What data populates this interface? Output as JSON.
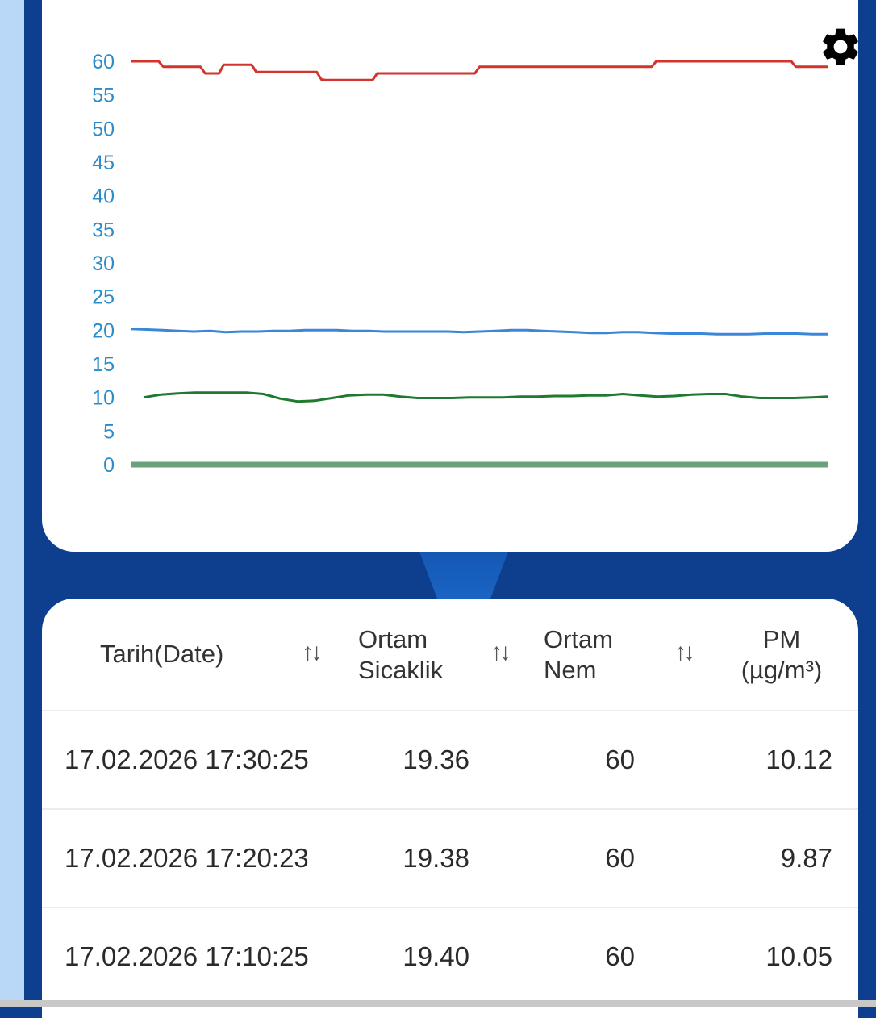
{
  "chart_data": {
    "type": "line",
    "title": "",
    "xlabel": "",
    "ylabel": "",
    "ylim": [
      0,
      60
    ],
    "yticks": [
      "60",
      "55",
      "50",
      "45",
      "40",
      "35",
      "30",
      "25",
      "20",
      "15",
      "10",
      "5",
      "0"
    ],
    "grid": false,
    "series": [
      {
        "color": "#d0342c",
        "values": [
          60,
          60,
          60,
          60,
          60,
          60,
          60,
          59.2,
          59.2,
          59.2,
          59.2,
          59.2,
          59.2,
          59.2,
          59.2,
          59.2,
          58.2,
          58.2,
          58.2,
          58.2,
          59.5,
          59.5,
          59.5,
          59.5,
          59.5,
          59.5,
          59.5,
          58.4,
          58.4,
          58.4,
          58.4,
          58.4,
          58.4,
          58.4,
          58.4,
          58.4,
          58.4,
          58.4,
          58.4,
          58.4,
          58.4,
          57.3,
          57.2,
          57.2,
          57.2,
          57.2,
          57.2,
          57.2,
          57.2,
          57.2,
          57.2,
          57.2,
          57.2,
          58.2,
          58.2,
          58.2,
          58.2,
          58.2,
          58.2,
          58.2,
          58.2,
          58.2,
          58.2,
          58.2,
          58.2,
          58.2,
          58.2,
          58.2,
          58.2,
          58.2,
          58.2,
          58.2,
          58.2,
          58.2,
          58.2,
          59.2,
          59.2,
          59.2,
          59.2,
          59.2,
          59.2,
          59.2,
          59.2,
          59.2,
          59.2,
          59.2,
          59.2,
          59.2,
          59.2,
          59.2,
          59.2,
          59.2,
          59.2,
          59.2,
          59.2,
          59.2,
          59.2,
          59.2,
          59.2,
          59.2,
          59.2,
          59.2,
          59.2,
          59.2,
          59.2,
          59.2,
          59.2,
          59.2,
          59.2,
          59.2,
          59.2,
          59.2,
          59.2,
          60,
          60,
          60,
          60,
          60,
          60,
          60,
          60,
          60,
          60,
          60,
          60,
          60,
          60,
          60,
          60,
          60,
          60,
          60,
          60,
          60,
          60,
          60,
          60,
          60,
          60,
          60,
          60,
          60,
          60,
          59.2,
          59.2,
          59.2,
          59.2,
          59.2,
          59.2,
          59.2,
          59.2
        ]
      },
      {
        "color": "#3a86d8",
        "values": [
          20.2,
          20.1,
          20,
          19.9,
          19.8,
          19.9,
          19.7,
          19.8,
          19.8,
          19.9,
          19.9,
          20,
          20,
          20,
          19.9,
          19.9,
          19.8,
          19.8,
          19.8,
          19.8,
          19.8,
          19.7,
          19.8,
          19.9,
          20,
          20,
          19.9,
          19.8,
          19.7,
          19.6,
          19.6,
          19.7,
          19.7,
          19.6,
          19.5,
          19.5,
          19.5,
          19.4,
          19.4,
          19.4,
          19.5,
          19.5,
          19.5,
          19.4,
          19.4
        ]
      },
      {
        "color": "#1e7a2f",
        "values": [
          10,
          10.4,
          10.6,
          10.7,
          10.7,
          10.7,
          10.7,
          10.5,
          9.8,
          9.4,
          9.5,
          9.9,
          10.3,
          10.4,
          10.4,
          10.1,
          9.9,
          9.9,
          9.9,
          10,
          10,
          10,
          10.1,
          10.1,
          10.2,
          10.2,
          10.3,
          10.3,
          10.5,
          10.3,
          10.1,
          10.2,
          10.4,
          10.5,
          10.5,
          10.1,
          9.9,
          9.9,
          9.9,
          10,
          10.1
        ]
      },
      {
        "color": "#6aa17a",
        "values": [
          0,
          0,
          0,
          0,
          0,
          0,
          0,
          0,
          0,
          0,
          0
        ]
      }
    ]
  },
  "chart": {
    "settings_icon": "gear-icon"
  },
  "table": {
    "headers": [
      {
        "line1": "Tarih(Date)",
        "line2": ""
      },
      {
        "line1": "Ortam",
        "line2": "Sicaklik"
      },
      {
        "line1": "Ortam",
        "line2": "Nem"
      },
      {
        "line1": "PM",
        "line2": "(µg/m³)"
      }
    ],
    "sort_glyph": "↑↓",
    "rows": [
      {
        "date": "17.02.2026 17:30:25",
        "temp": "19.36",
        "humidity": "60",
        "pm": "10.12"
      },
      {
        "date": "17.02.2026 17:20:23",
        "temp": "19.38",
        "humidity": "60",
        "pm": "9.87"
      },
      {
        "date": "17.02.2026 17:10:25",
        "temp": "19.40",
        "humidity": "60",
        "pm": "10.05"
      }
    ]
  }
}
